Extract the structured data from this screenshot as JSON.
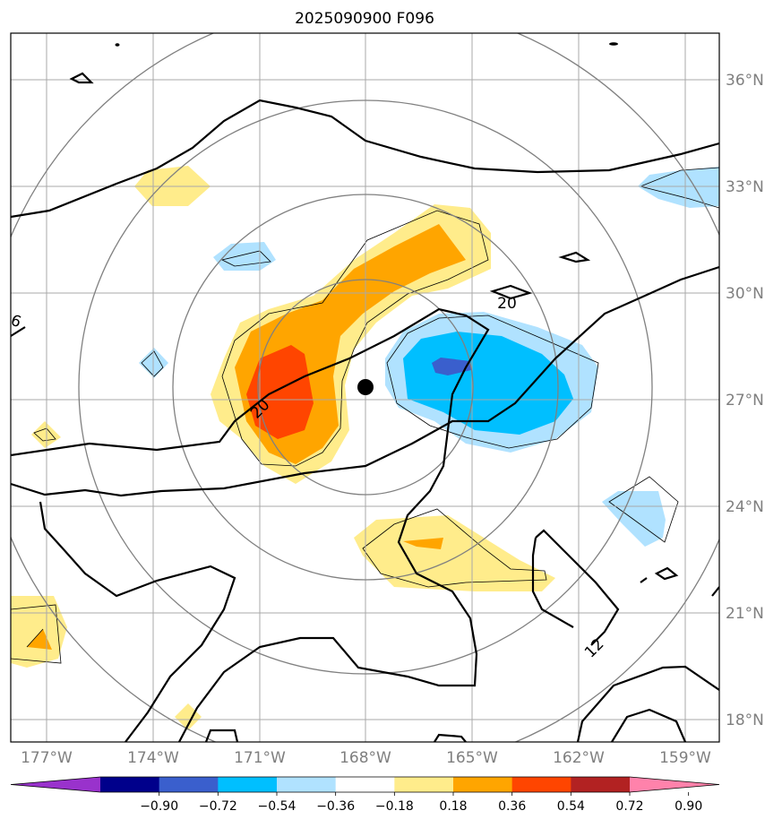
{
  "title": "2025090900 F096",
  "map": {
    "lat_labels": [
      "36°N",
      "33°N",
      "30°N",
      "27°N",
      "24°N",
      "21°N",
      "18°N"
    ],
    "lon_labels": [
      "177°W",
      "174°W",
      "171°W",
      "168°W",
      "165°W",
      "162°W",
      "159°W"
    ],
    "storm_center": {
      "lat": 27.3,
      "lon": -168.0
    },
    "contour_labels": [
      "20",
      "20",
      "12",
      "6"
    ]
  },
  "colorbar": {
    "tick_labels": [
      "−0.90",
      "−0.72",
      "−0.54",
      "−0.36",
      "−0.18",
      "0.18",
      "0.36",
      "0.54",
      "0.72",
      "0.90"
    ],
    "colors": [
      "#9932cc",
      "#00008b",
      "#3a5fcd",
      "#00bfff",
      "#b0e2ff",
      "#ffffff",
      "#ffec8b",
      "#ffa500",
      "#ff4500",
      "#b22222",
      "#ff82ab"
    ]
  },
  "fill_colors": {
    "pos1": "#ffec8b",
    "pos2": "#ffa500",
    "pos3": "#ff4500",
    "neg1": "#b0e2ff",
    "neg2": "#00bfff",
    "neg3": "#3a5fcd"
  }
}
